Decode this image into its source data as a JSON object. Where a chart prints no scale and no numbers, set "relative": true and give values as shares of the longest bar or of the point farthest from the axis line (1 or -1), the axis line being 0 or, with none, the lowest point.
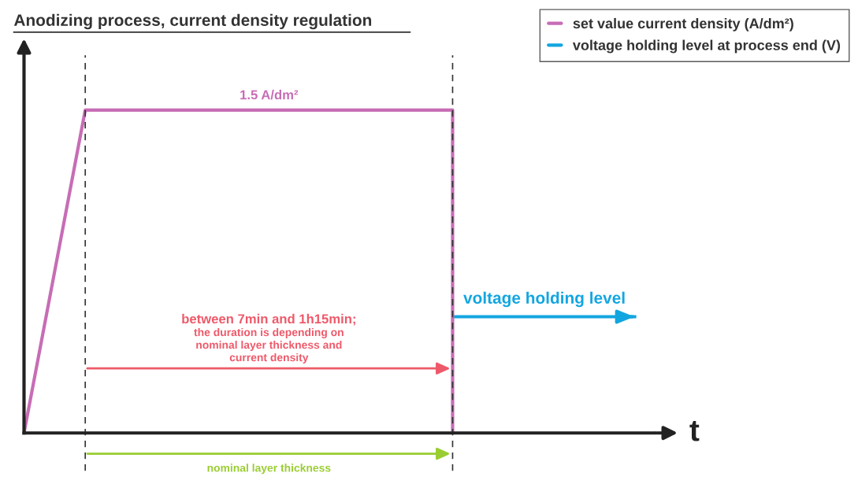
{
  "chart_data": {
    "type": "line",
    "title": "Anodizing process, current density regulation",
    "xlabel": "t",
    "relative": true,
    "legend": "top right",
    "grid": false,
    "tick_labels": false,
    "series": [
      {
        "name": "set value current density (A/dm²)",
        "color": "#c76db5",
        "values": [
          0,
          1,
          1,
          1,
          1,
          1,
          1,
          1,
          null,
          null,
          null
        ]
      },
      {
        "name": "voltage holding level at process end (V)",
        "color": "#12a6e0",
        "values": [
          null,
          null,
          null,
          null,
          null,
          null,
          null,
          0.36,
          0.36,
          0.36,
          0.36
        ]
      }
    ],
    "categories": [
      null,
      null,
      null,
      null,
      null,
      null,
      null,
      null,
      null,
      null,
      null
    ],
    "annotations": [
      "1.5 A/dm²",
      "voltage holding level",
      "between 7min and 1h15min;",
      "the duration is depending on\nnominal layer thickness and\ncurrent density",
      "nominal layer thickness"
    ]
  }
}
